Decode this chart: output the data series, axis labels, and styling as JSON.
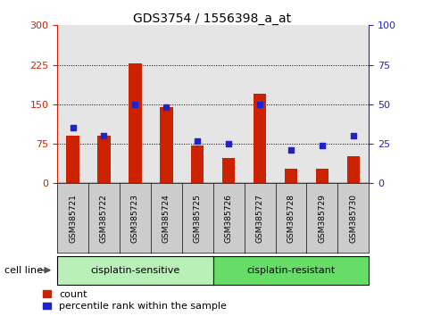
{
  "title": "GDS3754 / 1556398_a_at",
  "samples": [
    "GSM385721",
    "GSM385722",
    "GSM385723",
    "GSM385724",
    "GSM385725",
    "GSM385726",
    "GSM385727",
    "GSM385728",
    "GSM385729",
    "GSM385730"
  ],
  "counts": [
    90,
    90,
    228,
    145,
    72,
    48,
    170,
    28,
    28,
    52
  ],
  "percentile_ranks": [
    35,
    30,
    50,
    48,
    27,
    25,
    50,
    21,
    24,
    30
  ],
  "group1_label": "cisplatin-sensitive",
  "group2_label": "cisplatin-resistant",
  "group1_n": 5,
  "group2_n": 5,
  "group1_color": "#b8f0b8",
  "group2_color": "#66dd66",
  "bar_color": "#cc2200",
  "dot_color": "#2222cc",
  "left_yticks": [
    0,
    75,
    150,
    225,
    300
  ],
  "right_yticks": [
    0,
    25,
    50,
    75,
    100
  ],
  "left_ylim": [
    0,
    300
  ],
  "right_ylim": [
    0,
    100
  ],
  "left_tick_color": "#cc2200",
  "right_tick_color": "#2222cc",
  "grid_lines": [
    75,
    150,
    225
  ],
  "legend_count_label": "count",
  "legend_pct_label": "percentile rank within the sample",
  "cell_line_label": "cell line",
  "col_bg_color": "#cccccc",
  "plot_bg_color": "#ffffff",
  "title_fontsize": 10,
  "tick_label_fontsize": 8,
  "group_label_fontsize": 8,
  "legend_fontsize": 8
}
